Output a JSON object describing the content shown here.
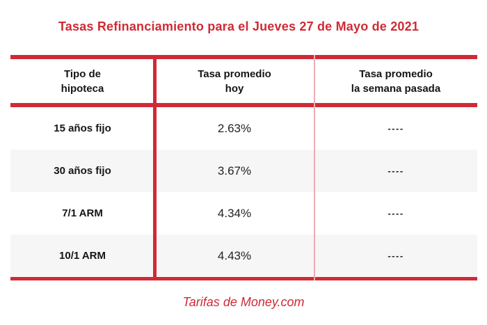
{
  "title": "Tasas Refinanciamiento para el Jueves 27 de Mayo de 2021",
  "table": {
    "headers": [
      {
        "line1": "Tipo de",
        "line2": "hipoteca"
      },
      {
        "line1": "Tasa promedio",
        "line2": "hoy"
      },
      {
        "line1": "Tasa promedio",
        "line2": "la semana pasada"
      }
    ],
    "rows": [
      {
        "type": "15 años fijo",
        "today": "2.63%",
        "last_week": "----"
      },
      {
        "type": "30 años fijo",
        "today": "3.67%",
        "last_week": "----"
      },
      {
        "type": "7/1 ARM",
        "today": "4.34%",
        "last_week": "----"
      },
      {
        "type": "10/1 ARM",
        "today": "4.43%",
        "last_week": "----"
      }
    ]
  },
  "footer": {
    "source_label": "Tarifas de Money.com"
  },
  "colors": {
    "brand_red": "#D02A35",
    "divider_pink": "#EEACB4",
    "row_alt_gray": "#F6F6F7"
  },
  "chart_data": {
    "type": "table",
    "title": "Tasas Refinanciamiento para el Jueves 27 de Mayo de 2021",
    "columns": [
      "Tipo de hipoteca",
      "Tasa promedio hoy",
      "Tasa promedio la semana pasada"
    ],
    "rows": [
      [
        "15 años fijo",
        "2.63%",
        "----"
      ],
      [
        "30 años fijo",
        "3.67%",
        "----"
      ],
      [
        "7/1 ARM",
        "4.34%",
        "----"
      ],
      [
        "10/1 ARM",
        "4.43%",
        "----"
      ]
    ],
    "values_today_pct": [
      2.63,
      3.67,
      4.34,
      4.43
    ],
    "values_last_week_pct": [
      null,
      null,
      null,
      null
    ],
    "source": "Tarifas de Money.com",
    "legend_position": "none",
    "grid": false
  }
}
